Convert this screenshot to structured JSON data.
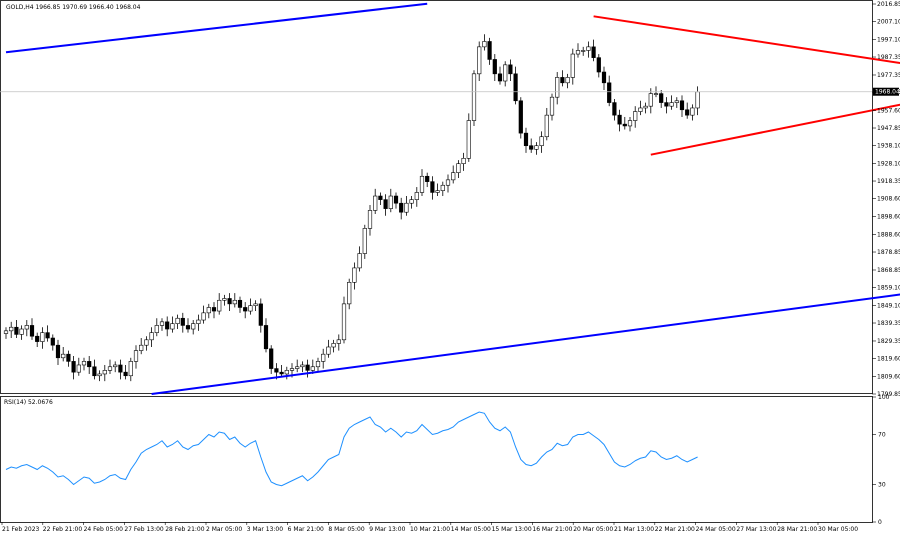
{
  "header": {
    "symbol_text": "GOLD,H4  1966.85 1970.69 1966.40 1968.04"
  },
  "rsi_header": {
    "text": "RSI(14) 52.0676"
  },
  "chart_data": [
    {
      "type": "candlestick",
      "title": "GOLD,H4",
      "ylim": [
        1799.85,
        2016.85
      ],
      "yticks": [
        "2016.85",
        "2007.10",
        "1997.10",
        "1987.35",
        "1977.35",
        "1967.85",
        "1957.60",
        "1947.85",
        "1938.10",
        "1928.10",
        "1918.35",
        "1908.60",
        "1898.60",
        "1888.60",
        "1878.85",
        "1868.85",
        "1859.10",
        "1849.10",
        "1839.35",
        "1829.35",
        "1819.60",
        "1809.60",
        "1799.85"
      ],
      "current_price": "1968.04",
      "xticks": [
        "21 Feb 2023",
        "22 Feb 21:00",
        "24 Feb 05:00",
        "27 Feb 13:00",
        "28 Feb 21:00",
        "2 Mar 05:00",
        "3 Mar 13:00",
        "6 Mar 21:00",
        "8 Mar 05:00",
        "9 Mar 13:00",
        "10 Mar 21:00",
        "14 Mar 05:00",
        "15 Mar 13:00",
        "16 Mar 21:00",
        "20 Mar 05:00",
        "21 Mar 13:00",
        "22 Mar 21:00",
        "24 Mar 05:00",
        "27 Mar 13:00",
        "28 Mar 21:00",
        "30 Mar 05:00"
      ],
      "close": [
        1835,
        1837,
        1833,
        1836,
        1838,
        1832,
        1829,
        1834,
        1831,
        1827,
        1820,
        1822,
        1818,
        1812,
        1816,
        1818,
        1815,
        1810,
        1811,
        1813,
        1815,
        1816,
        1812,
        1810,
        1818,
        1824,
        1827,
        1830,
        1834,
        1838,
        1840,
        1836,
        1839,
        1842,
        1838,
        1836,
        1839,
        1841,
        1845,
        1848,
        1846,
        1852,
        1853,
        1850,
        1852,
        1848,
        1846,
        1849,
        1850,
        1838,
        1825,
        1814,
        1812,
        1811,
        1813,
        1814,
        1815,
        1816,
        1813,
        1815,
        1818,
        1822,
        1826,
        1828,
        1830,
        1850,
        1862,
        1870,
        1878,
        1892,
        1902,
        1910,
        1908,
        1903,
        1910,
        1906,
        1901,
        1906,
        1908,
        1912,
        1921,
        1918,
        1912,
        1913,
        1916,
        1919,
        1923,
        1928,
        1931,
        1952,
        1978,
        1993,
        1996,
        1986,
        1978,
        1974,
        1983,
        1978,
        1963,
        1945,
        1938,
        1936,
        1938,
        1943,
        1955,
        1965,
        1976,
        1973,
        1976,
        1989,
        1991,
        1991,
        1993,
        1987,
        1979,
        1973,
        1962,
        1955,
        1950,
        1949,
        1952,
        1957,
        1959,
        1960,
        1967,
        1967,
        1962,
        1960,
        1962,
        1963,
        1958,
        1955,
        1959,
        1968
      ],
      "channel_lines": [
        {
          "name": "",
          "color": "#0000ff",
          "points": [
            [
              0,
              1990
            ],
            [
              81,
              2017
            ]
          ]
        },
        {
          "name": "",
          "color": "#0000ff",
          "points": [
            [
              28,
              1799.85
            ],
            [
              206,
              1868.3
            ]
          ]
        }
      ],
      "triangle_lines": [
        {
          "color": "#ff0000",
          "points": [
            [
              113,
              2010
            ],
            [
              181,
              1980
            ]
          ]
        },
        {
          "color": "#ff0000",
          "points": [
            [
              124,
              1933
            ],
            [
              174,
              1962
            ]
          ]
        }
      ],
      "grid": false
    },
    {
      "type": "line",
      "title": "RSI(14)",
      "ylim": [
        0,
        100
      ],
      "yticks": [
        "100",
        "70",
        "30",
        "0"
      ],
      "series": [
        {
          "name": "RSI(14)",
          "color": "#1e90ff",
          "values": [
            42,
            44,
            43,
            45,
            46,
            44,
            42,
            45,
            43,
            40,
            36,
            37,
            34,
            30,
            33,
            36,
            35,
            31,
            32,
            34,
            37,
            38,
            35,
            34,
            42,
            48,
            55,
            58,
            60,
            62,
            65,
            60,
            62,
            65,
            60,
            58,
            61,
            62,
            66,
            70,
            68,
            72,
            71,
            66,
            68,
            63,
            60,
            63,
            65,
            52,
            40,
            32,
            30,
            29,
            31,
            33,
            35,
            37,
            33,
            36,
            40,
            45,
            50,
            52,
            54,
            68,
            75,
            78,
            80,
            82,
            84,
            78,
            76,
            72,
            75,
            72,
            68,
            72,
            71,
            73,
            78,
            74,
            70,
            71,
            73,
            74,
            76,
            80,
            82,
            84,
            86,
            88,
            87,
            80,
            75,
            73,
            76,
            72,
            60,
            50,
            46,
            45,
            47,
            52,
            56,
            58,
            63,
            61,
            62,
            68,
            70,
            70,
            72,
            69,
            66,
            62,
            55,
            48,
            45,
            44,
            46,
            49,
            51,
            52,
            57,
            56,
            52,
            50,
            51,
            53,
            50,
            48,
            50,
            52
          ]
        }
      ],
      "grid": false
    }
  ]
}
